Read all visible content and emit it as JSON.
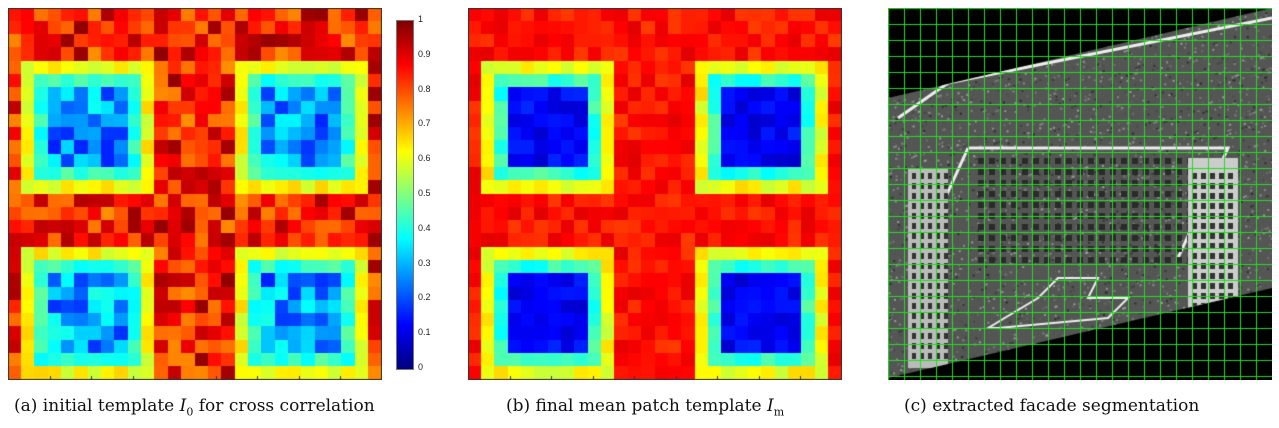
{
  "figure": {
    "colorbar": {
      "ticks": [
        "1",
        "0.9",
        "0.8",
        "0.7",
        "0.6",
        "0.5",
        "0.4",
        "0.3",
        "0.2",
        "0.1",
        "0"
      ],
      "colormap": "jet"
    },
    "panels": [
      {
        "id": "a",
        "caption_prefix": "(a) initial template ",
        "symbol": "I",
        "subscript": "0",
        "caption_suffix": " for cross correlation",
        "type": "heatmap",
        "grid_size": 28,
        "noise": "high"
      },
      {
        "id": "b",
        "caption_prefix": "(b) final mean patch template ",
        "symbol": "I",
        "subscript": "m",
        "caption_suffix": "",
        "type": "heatmap",
        "grid_size": 28,
        "noise": "low"
      },
      {
        "id": "c",
        "caption": "(c) extracted facade segmentation",
        "type": "image",
        "grid_color": "#22dd22"
      }
    ]
  }
}
